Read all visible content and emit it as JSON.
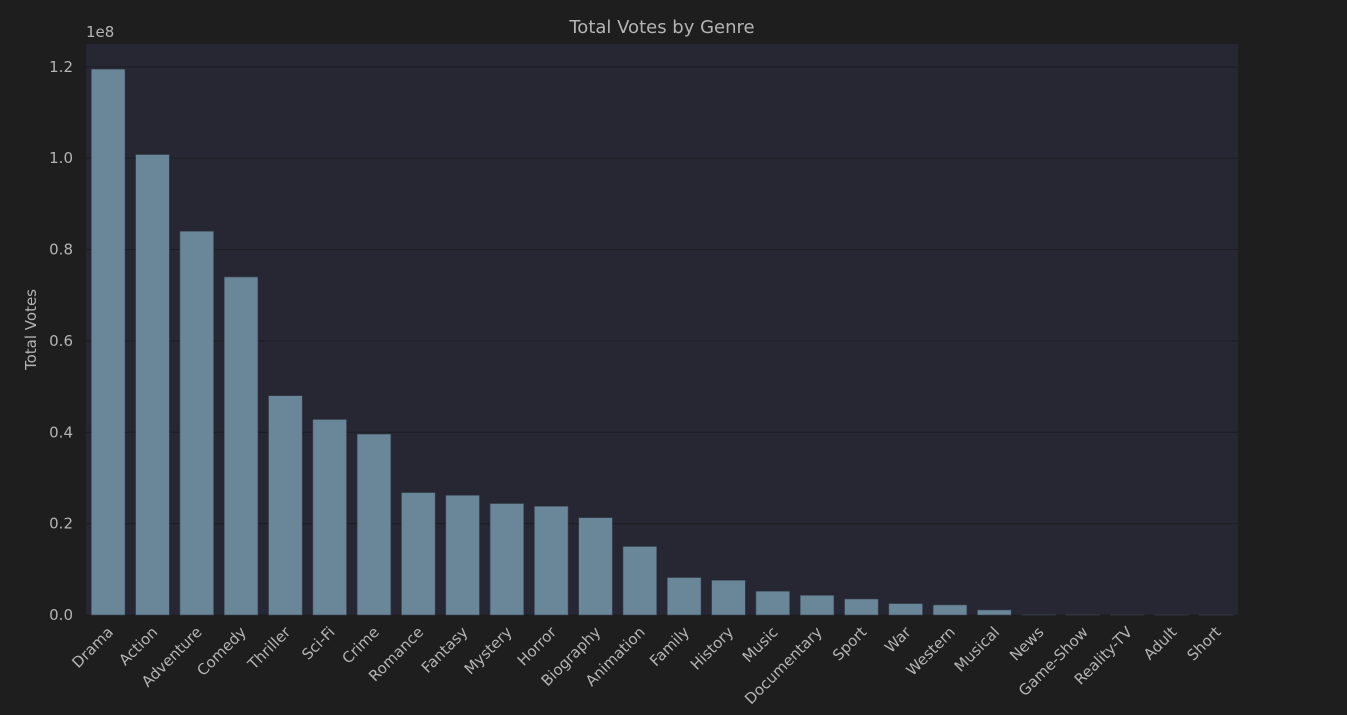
{
  "colors": {
    "page_background": "#1e1e1e",
    "plot_background": "#262733",
    "bar_fill": "#6a8799",
    "grid": "#1c1c22",
    "text": "#b4b4b4"
  },
  "chart_data": {
    "type": "bar",
    "title": "Total Votes by Genre",
    "xlabel": "",
    "ylabel": "Total Votes",
    "y_offset_label": "1e8",
    "y_scale": 100000000,
    "ylim": [
      0,
      1.25
    ],
    "yticks": [
      0.0,
      0.2,
      0.4,
      0.6,
      0.8,
      1.0,
      1.2
    ],
    "ytick_labels": [
      "0.0",
      "0.2",
      "0.4",
      "0.6",
      "0.8",
      "1.0",
      "1.2"
    ],
    "grid": true,
    "legend": false,
    "categories": [
      "Drama",
      "Action",
      "Adventure",
      "Comedy",
      "Thriller",
      "Sci-Fi",
      "Crime",
      "Romance",
      "Fantasy",
      "Mystery",
      "Horror",
      "Biography",
      "Animation",
      "Family",
      "History",
      "Music",
      "Documentary",
      "Sport",
      "War",
      "Western",
      "Musical",
      "News",
      "Game-Show",
      "Reality-TV",
      "Adult",
      "Short"
    ],
    "values": [
      1.195,
      1.008,
      0.84,
      0.74,
      0.48,
      0.428,
      0.396,
      0.268,
      0.262,
      0.244,
      0.238,
      0.213,
      0.15,
      0.082,
      0.076,
      0.052,
      0.043,
      0.035,
      0.025,
      0.022,
      0.011,
      0.0005,
      0.0003,
      0.0002,
      0.0001,
      0.0001
    ]
  }
}
